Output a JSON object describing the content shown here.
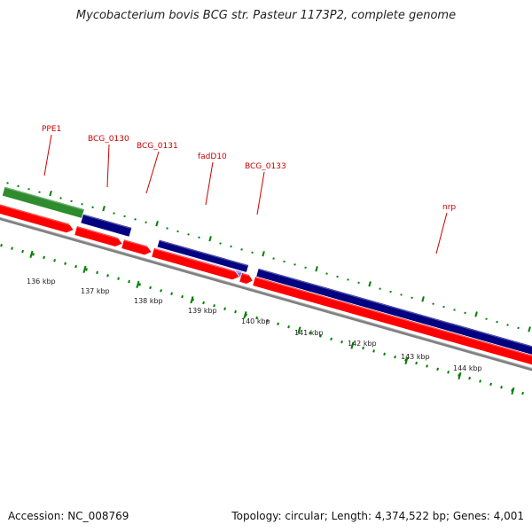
{
  "title": "Mycobacterium bovis BCG str. Pasteur 1173P2, complete genome",
  "footer": {
    "accession": "Accession: NC_008769",
    "topology": "Topology: circular; Length: 4,374,522 bp; Genes: 4,001"
  },
  "gene_labels": [
    "PPE1",
    "BCG_0130",
    "BCG_0131",
    "fadD10",
    "BCG_0133",
    "nrp"
  ],
  "scale_labels": [
    "136 kbp",
    "137 kbp",
    "138 kbp",
    "139 kbp",
    "140 kbp",
    "141 kbp",
    "142 kbp",
    "143 kbp",
    "144 kbp"
  ],
  "colors": {
    "forward_cds": "#ff0000",
    "reverse_cds": "#000080",
    "green_feature": "#2e8b2e",
    "light_feature": "#7b68ee",
    "backbone": "#808080",
    "gene_label": "#cc0000",
    "tick": "#008000"
  }
}
